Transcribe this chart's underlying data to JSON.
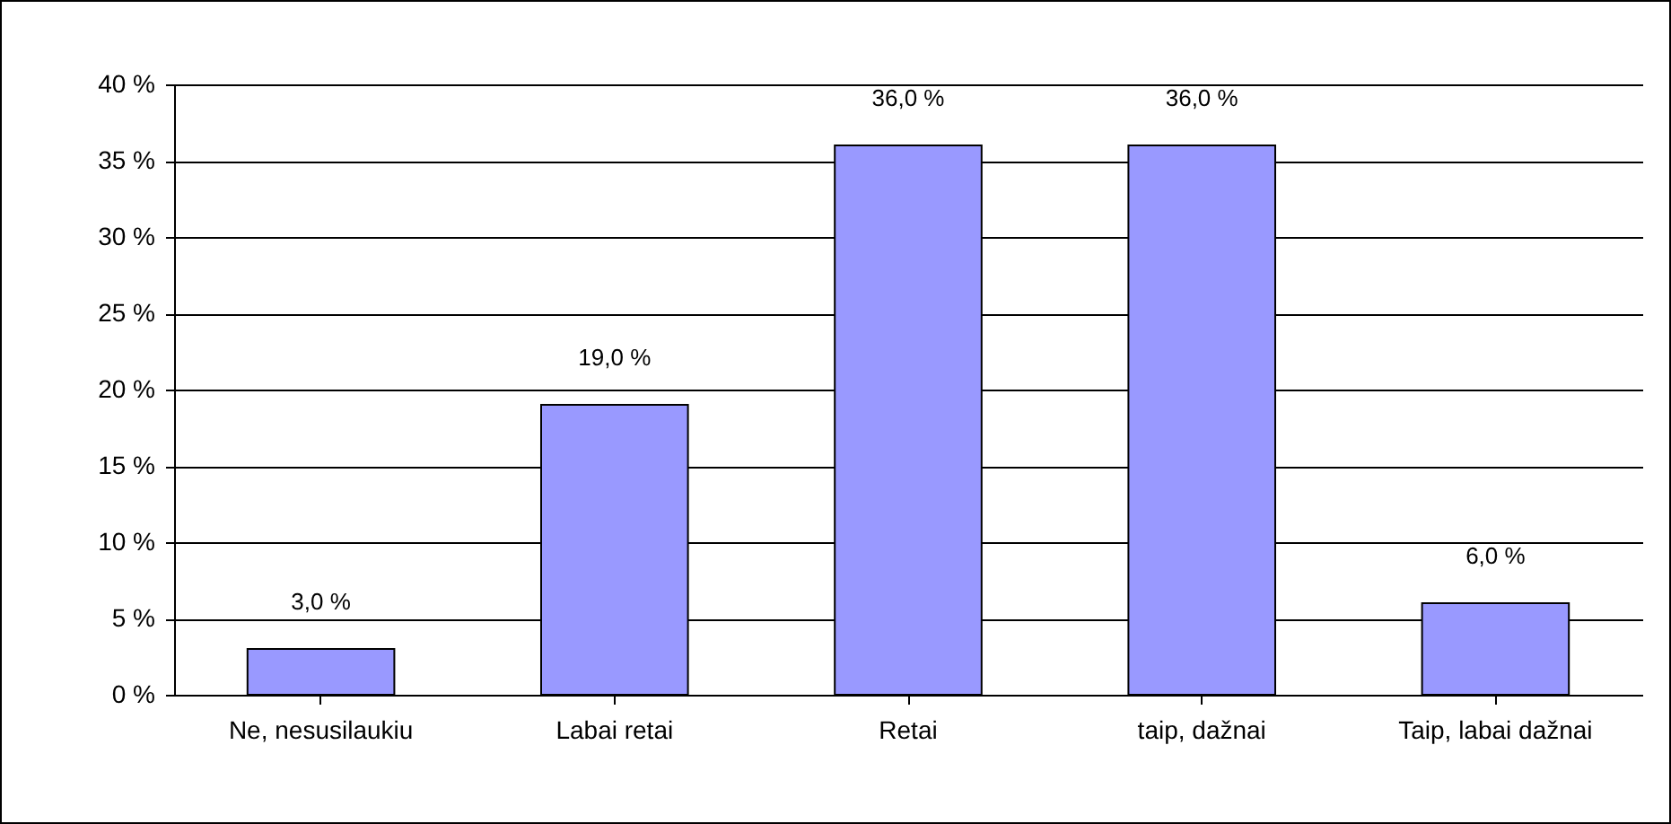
{
  "chart_data": {
    "type": "bar",
    "categories": [
      "Ne, nesusilaukiu",
      "Labai retai",
      "Retai",
      "taip, dažnai",
      "Taip, labai dažnai"
    ],
    "values": [
      3,
      19,
      36,
      36,
      6
    ],
    "value_labels": [
      "3,0 %",
      "19,0 %",
      "36,0 %",
      "36,0 %",
      "6,0 %"
    ],
    "color": "#9999ff",
    "ylim": [
      0,
      40
    ],
    "yticks": [
      {
        "value": 0,
        "label": "0 %"
      },
      {
        "value": 5,
        "label": "5 %"
      },
      {
        "value": 10,
        "label": "10 %"
      },
      {
        "value": 15,
        "label": "15 %"
      },
      {
        "value": 20,
        "label": "20 %"
      },
      {
        "value": 25,
        "label": "25 %"
      },
      {
        "value": 30,
        "label": "30 %"
      },
      {
        "value": 35,
        "label": "35 %"
      },
      {
        "value": 40,
        "label": "40 %"
      }
    ],
    "grid": "y"
  }
}
